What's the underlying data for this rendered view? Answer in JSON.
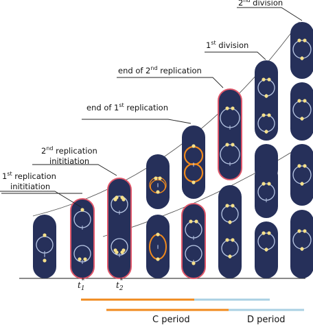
{
  "labels": {
    "rep1_line1": "1",
    "rep1_sup": "st",
    "rep1_rest": " replication",
    "rep1_line2": "inititiation",
    "rep2_line1": "2",
    "rep2_sup": "nd",
    "rep2_rest": " replication",
    "rep2_line2": "inititiation",
    "end1_pre": "end of 1",
    "end1_sup": "st",
    "end1_rest": " replication",
    "end2_pre": "end of 2",
    "end2_sup": "nd",
    "end2_rest": " replication",
    "div1_pre": "1",
    "div1_sup": "st",
    "div1_rest": " division",
    "div2_pre": "2",
    "div2_sup": "nd",
    "div2_rest": " division",
    "t1_base": "t",
    "t1_sub": "1",
    "t1_star": "*",
    "t2_base": "t",
    "t2_sub": "2",
    "t2_star": "*"
  },
  "periods": {
    "c_label": "C period",
    "d_label": "D period"
  },
  "colors": {
    "cell_fill": "#26305a",
    "cell_highlight": "#e0576a",
    "chromosome": "#b9c8e6",
    "replicating_chromosome": "#f08a1d",
    "origin_dot": "#f5e08a",
    "c_period": "#f08a1d",
    "d_period": "#a9d0e3",
    "axis": "#444444"
  }
}
